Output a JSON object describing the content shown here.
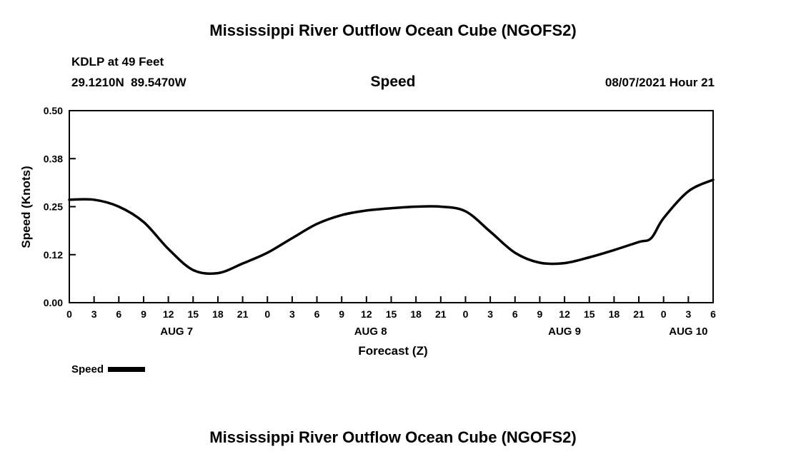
{
  "page": {
    "title_top": "Mississippi River Outflow Ocean Cube (NGOFS2)",
    "title_bottom": "Mississippi River Outflow Ocean Cube (NGOFS2)"
  },
  "header": {
    "station": "KDLP at 49 Feet",
    "coords": "29.1210N  89.5470W",
    "plot_title": "Speed",
    "datetime": "08/07/2021 Hour 21"
  },
  "legend": {
    "label": "Speed"
  },
  "chart_data": {
    "type": "line",
    "title": "Speed",
    "xlabel": "Forecast (Z)",
    "ylabel": "Speed (Knots)",
    "xlim": [
      0,
      78
    ],
    "ylim": [
      0,
      0.5
    ],
    "grid": false,
    "legend_position": "bottom-left",
    "line_color": "#000000",
    "y_ticks": [
      {
        "value": 0.0,
        "label": "0.00"
      },
      {
        "value": 0.125,
        "label": "0.12"
      },
      {
        "value": 0.25,
        "label": "0.25"
      },
      {
        "value": 0.375,
        "label": "0.38"
      },
      {
        "value": 0.5,
        "label": "0.50"
      }
    ],
    "x_ticks": [
      {
        "hour": 0,
        "label": "0"
      },
      {
        "hour": 3,
        "label": "3"
      },
      {
        "hour": 6,
        "label": "6"
      },
      {
        "hour": 9,
        "label": "9"
      },
      {
        "hour": 12,
        "label": "12"
      },
      {
        "hour": 15,
        "label": "15"
      },
      {
        "hour": 18,
        "label": "18"
      },
      {
        "hour": 21,
        "label": "21"
      },
      {
        "hour": 24,
        "label": "0"
      },
      {
        "hour": 27,
        "label": "3"
      },
      {
        "hour": 30,
        "label": "6"
      },
      {
        "hour": 33,
        "label": "9"
      },
      {
        "hour": 36,
        "label": "12"
      },
      {
        "hour": 39,
        "label": "15"
      },
      {
        "hour": 42,
        "label": "18"
      },
      {
        "hour": 45,
        "label": "21"
      },
      {
        "hour": 48,
        "label": "0"
      },
      {
        "hour": 51,
        "label": "3"
      },
      {
        "hour": 54,
        "label": "6"
      },
      {
        "hour": 57,
        "label": "9"
      },
      {
        "hour": 60,
        "label": "12"
      },
      {
        "hour": 63,
        "label": "15"
      },
      {
        "hour": 66,
        "label": "18"
      },
      {
        "hour": 69,
        "label": "21"
      },
      {
        "hour": 72,
        "label": "0"
      },
      {
        "hour": 75,
        "label": "3"
      },
      {
        "hour": 78,
        "label": "6"
      }
    ],
    "date_labels": [
      {
        "label": "AUG 7",
        "hour": 13
      },
      {
        "label": "AUG 8",
        "hour": 36.5
      },
      {
        "label": "AUG 9",
        "hour": 60
      },
      {
        "label": "AUG 10",
        "hour": 75
      }
    ],
    "series": [
      {
        "name": "Speed",
        "color": "#000000",
        "x": [
          0,
          3,
          6,
          9,
          12,
          15,
          18,
          21,
          24,
          27,
          30,
          33,
          36,
          39,
          42,
          45,
          48,
          51,
          54,
          57,
          60,
          63,
          66,
          69,
          70.5,
          72,
          75,
          78
        ],
        "values": [
          0.268,
          0.268,
          0.25,
          0.21,
          0.14,
          0.085,
          0.077,
          0.102,
          0.13,
          0.168,
          0.205,
          0.228,
          0.24,
          0.246,
          0.25,
          0.25,
          0.238,
          0.185,
          0.13,
          0.104,
          0.103,
          0.118,
          0.137,
          0.158,
          0.168,
          0.22,
          0.29,
          0.32
        ]
      }
    ]
  }
}
